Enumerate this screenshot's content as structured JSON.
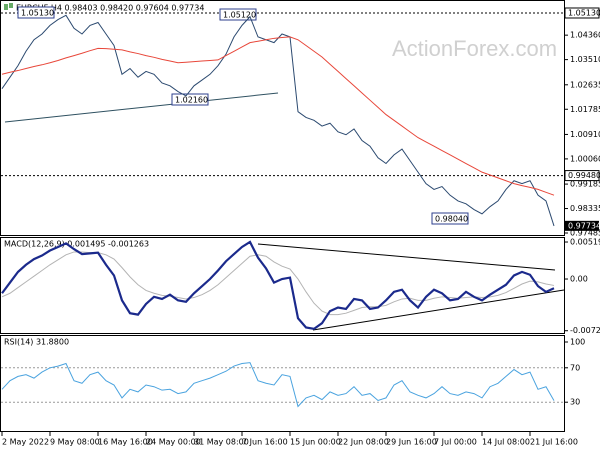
{
  "chart_data": [
    {
      "type": "line",
      "title": "EURCHF,H4 0.98403 0.98420 0.97604 0.97734",
      "watermark": "ActionForex.com",
      "categories": [
        "2 May 2022",
        null,
        null,
        null,
        null,
        null,
        "9 May 08:00",
        null,
        null,
        null,
        null,
        null,
        "16 May 16:00",
        null,
        null,
        null,
        null,
        null,
        "24 May 00:00",
        null,
        null,
        null,
        null,
        null,
        "31 May 08:00",
        null,
        null,
        null,
        null,
        null,
        "7 Jun 16:00",
        null,
        null,
        null,
        null,
        null,
        "15 Jun 00:00",
        null,
        null,
        null,
        null,
        null,
        "22 Jun 08:00",
        null,
        null,
        null,
        null,
        null,
        "29 Jun 16:00",
        null,
        null,
        null,
        null,
        null,
        "7 Jul 00:00",
        null,
        null,
        null,
        null,
        null,
        "14 Jul 08:00",
        null,
        null,
        null,
        null,
        null,
        "21 Jul 16:00",
        null,
        null,
        null
      ],
      "ylim": [
        0.97381,
        1.05512
      ],
      "yticks": [
        {
          "value": 1.0513,
          "label": "1.05130"
        },
        {
          "value": 1.0436,
          "label": "1.04360"
        },
        {
          "value": 1.0351,
          "label": "1.03510"
        },
        {
          "value": 1.02635,
          "label": "1.02635"
        },
        {
          "value": 1.01785,
          "label": "1.01785"
        },
        {
          "value": 1.0091,
          "label": "1.00910"
        },
        {
          "value": 1.0006,
          "label": "1.00060"
        },
        {
          "value": 0.99185,
          "label": "0.99185"
        },
        {
          "value": 0.98335,
          "label": "0.98335"
        },
        {
          "value": 0.97485,
          "label": "0.97485"
        }
      ],
      "levels": [
        {
          "value": 1.0513,
          "label": "1.05130"
        },
        {
          "value": 0.9948,
          "label": "0.99480"
        }
      ],
      "last": {
        "value": 0.97734,
        "label": "0.97734"
      },
      "annotations": [
        {
          "value": 1.0513,
          "label": "1.05130"
        },
        {
          "value": 1.0512,
          "label": "1.05120"
        },
        {
          "value": 1.0216,
          "label": "1.02160"
        },
        {
          "value": 0.9804,
          "label": "0.98040"
        }
      ],
      "series": [
        {
          "color": "#2c4a70",
          "values": [
            1.025,
            1.029,
            1.033,
            1.038,
            1.042,
            1.044,
            1.047,
            1.049,
            1.0505,
            1.046,
            1.044,
            1.047,
            1.048,
            1.044,
            1.04,
            1.03,
            1.032,
            1.029,
            1.031,
            1.03,
            1.027,
            1.026,
            1.024,
            1.0225,
            1.026,
            1.028,
            1.03,
            1.033,
            1.037,
            1.043,
            1.047,
            1.05,
            1.043,
            1.042,
            1.041,
            1.044,
            1.043,
            1.017,
            1.015,
            1.014,
            1.012,
            1.013,
            1.01,
            1.009,
            1.011,
            1.007,
            1.005,
            1.001,
            0.999,
            1.002,
            1.004,
            1.0,
            0.996,
            0.992,
            0.99,
            0.991,
            0.988,
            0.986,
            0.985,
            0.983,
            0.9815,
            0.984,
            0.986,
            0.99,
            0.993,
            0.992,
            0.993,
            0.988,
            0.986,
            0.9773
          ]
        },
        {
          "color": "#e8473a",
          "values": [
            1.03,
            1.0307,
            1.0313,
            1.032,
            1.0327,
            1.0333,
            1.034,
            1.0348,
            1.0357,
            1.0365,
            1.0373,
            1.0382,
            1.039,
            1.0389,
            1.0387,
            1.0385,
            1.0378,
            1.0372,
            1.0365,
            1.0359,
            1.0352,
            1.0346,
            1.034,
            1.0342,
            1.0344,
            1.0346,
            1.0348,
            1.035,
            1.0365,
            1.038,
            1.0395,
            1.041,
            1.0415,
            1.042,
            1.0425,
            1.0428,
            1.043,
            1.042,
            1.04,
            1.038,
            1.036,
            1.0335,
            1.031,
            1.0285,
            1.026,
            1.0235,
            1.021,
            1.0185,
            1.016,
            1.014,
            1.012,
            1.01,
            1.008,
            1.0065,
            1.005,
            1.0035,
            1.002,
            1.0005,
            0.999,
            0.9975,
            0.996,
            0.995,
            0.994,
            0.993,
            0.992,
            0.9913,
            0.9907,
            0.99,
            0.989,
            0.988
          ]
        }
      ]
    },
    {
      "type": "line",
      "title": "MACD(12,26,9) 0.001495 -0.001263",
      "ylim": [
        -0.00758,
        0.00576
      ],
      "yticks": [
        0.005196,
        {
          "value": 0,
          "label": "0.00"
        },
        -0.007259
      ],
      "series": [
        {
          "color": "#b4b4b4",
          "values": [
            -0.0025,
            -0.002,
            -0.0012,
            -0.0004,
            0.0004,
            0.0012,
            0.002,
            0.0027,
            0.0034,
            0.0038,
            0.0038,
            0.0037,
            0.0037,
            0.0034,
            0.0028,
            0.0016,
            0.0003,
            -0.0008,
            -0.0016,
            -0.002,
            -0.0023,
            -0.0024,
            -0.0026,
            -0.0028,
            -0.0026,
            -0.0022,
            -0.0016,
            -0.0008,
            0.0002,
            0.0012,
            0.0022,
            0.0032,
            0.0034,
            0.0032,
            0.0024,
            0.0018,
            0.0014,
            0.0,
            -0.0018,
            -0.0034,
            -0.0045,
            -0.005,
            -0.005,
            -0.0048,
            -0.0044,
            -0.004,
            -0.0039,
            -0.0039,
            -0.0037,
            -0.0032,
            -0.0028,
            -0.0027,
            -0.003,
            -0.003,
            -0.0027,
            -0.0025,
            -0.0026,
            -0.0027,
            -0.0026,
            -0.0025,
            -0.0026,
            -0.0025,
            -0.0023,
            -0.0019,
            -0.0013,
            -0.0007,
            -0.0003,
            -0.0004,
            -0.0007,
            -0.0009
          ]
        },
        {
          "color": "#1b2a8c",
          "values": [
            -0.002,
            -0.0005,
            0.001,
            0.002,
            0.0028,
            0.0033,
            0.004,
            0.0045,
            0.005,
            0.0042,
            0.0035,
            0.0036,
            0.0037,
            0.002,
            0.0005,
            -0.003,
            -0.0048,
            -0.005,
            -0.0035,
            -0.0025,
            -0.0028,
            -0.0022,
            -0.003,
            -0.0032,
            -0.002,
            -0.001,
            0.0,
            0.0012,
            0.0025,
            0.0035,
            0.0045,
            0.0052,
            0.003,
            0.0015,
            -0.0005,
            0.0,
            0.0002,
            -0.0055,
            -0.0068,
            -0.007,
            -0.0062,
            -0.0045,
            -0.004,
            -0.0042,
            -0.0028,
            -0.003,
            -0.0042,
            -0.004,
            -0.003,
            -0.0018,
            -0.0015,
            -0.003,
            -0.004,
            -0.0025,
            -0.0015,
            -0.002,
            -0.003,
            -0.0028,
            -0.0018,
            -0.0025,
            -0.003,
            -0.0022,
            -0.0015,
            -0.0008,
            0.0005,
            0.001,
            0.0006,
            -0.001,
            -0.0018,
            -0.0013
          ]
        }
      ]
    },
    {
      "type": "line",
      "title": "RSI(14) 31.8800",
      "ylim": [
        0,
        100
      ],
      "yticks": [
        100,
        70,
        30
      ],
      "levels": [
        70,
        30
      ],
      "series": [
        {
          "color": "#4aa3df",
          "values": [
            45,
            55,
            60,
            62,
            58,
            65,
            70,
            72,
            75,
            55,
            52,
            62,
            65,
            55,
            50,
            35,
            45,
            42,
            50,
            48,
            44,
            45,
            40,
            42,
            52,
            55,
            58,
            62,
            66,
            72,
            75,
            76,
            55,
            52,
            50,
            62,
            60,
            25,
            35,
            38,
            33,
            42,
            38,
            40,
            48,
            38,
            40,
            32,
            35,
            50,
            55,
            42,
            38,
            35,
            40,
            48,
            40,
            38,
            42,
            40,
            35,
            48,
            52,
            60,
            68,
            62,
            65,
            45,
            48,
            31.88
          ]
        }
      ]
    }
  ]
}
